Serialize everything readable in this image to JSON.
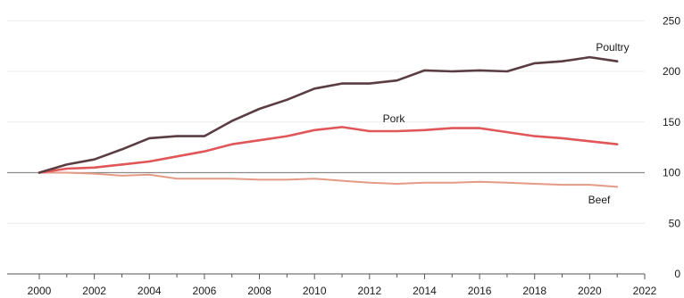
{
  "chart_data": {
    "type": "line",
    "title": "",
    "xlabel": "",
    "ylabel": "",
    "x_ticks": [
      2000,
      2002,
      2004,
      2006,
      2008,
      2010,
      2012,
      2014,
      2016,
      2018,
      2020,
      2022
    ],
    "y_ticks": [
      0,
      50,
      100,
      150,
      200,
      250
    ],
    "xlim": [
      1999.3,
      2022.2
    ],
    "ylim": [
      0,
      250
    ],
    "y_axis_side": "right",
    "grid": "horizontal faint",
    "reference_line": 100,
    "series": [
      {
        "name": "Poultry",
        "color": "#5a3d43",
        "x": [
          2000,
          2001,
          2002,
          2003,
          2004,
          2005,
          2006,
          2007,
          2008,
          2009,
          2010,
          2011,
          2012,
          2013,
          2014,
          2015,
          2016,
          2017,
          2018,
          2019,
          2020,
          2021
        ],
        "values": [
          100,
          108,
          113,
          123,
          134,
          136,
          136,
          151,
          163,
          172,
          183,
          188,
          188,
          191,
          201,
          200,
          201,
          200,
          208,
          210,
          214,
          210
        ]
      },
      {
        "name": "Pork",
        "color": "#e0575a",
        "x": [
          2000,
          2001,
          2002,
          2003,
          2004,
          2005,
          2006,
          2007,
          2008,
          2009,
          2010,
          2011,
          2012,
          2013,
          2014,
          2015,
          2016,
          2017,
          2018,
          2019,
          2020,
          2021
        ],
        "values": [
          100,
          104,
          105,
          108,
          111,
          116,
          121,
          128,
          132,
          136,
          142,
          145,
          141,
          141,
          142,
          144,
          144,
          140,
          136,
          134,
          131,
          128
        ]
      },
      {
        "name": "Beef",
        "color": "#e39a86",
        "x": [
          2000,
          2001,
          2002,
          2003,
          2004,
          2005,
          2006,
          2007,
          2008,
          2009,
          2010,
          2011,
          2012,
          2013,
          2014,
          2015,
          2016,
          2017,
          2018,
          2019,
          2020,
          2021
        ],
        "values": [
          100,
          100,
          99,
          97,
          98,
          94,
          94,
          94,
          93,
          93,
          94,
          92,
          90,
          89,
          90,
          90,
          91,
          90,
          89,
          88,
          88,
          86
        ]
      }
    ]
  },
  "colors": {
    "reference_line": "#8a8a8a",
    "gridline": "#ececec",
    "axis": "#555555"
  }
}
